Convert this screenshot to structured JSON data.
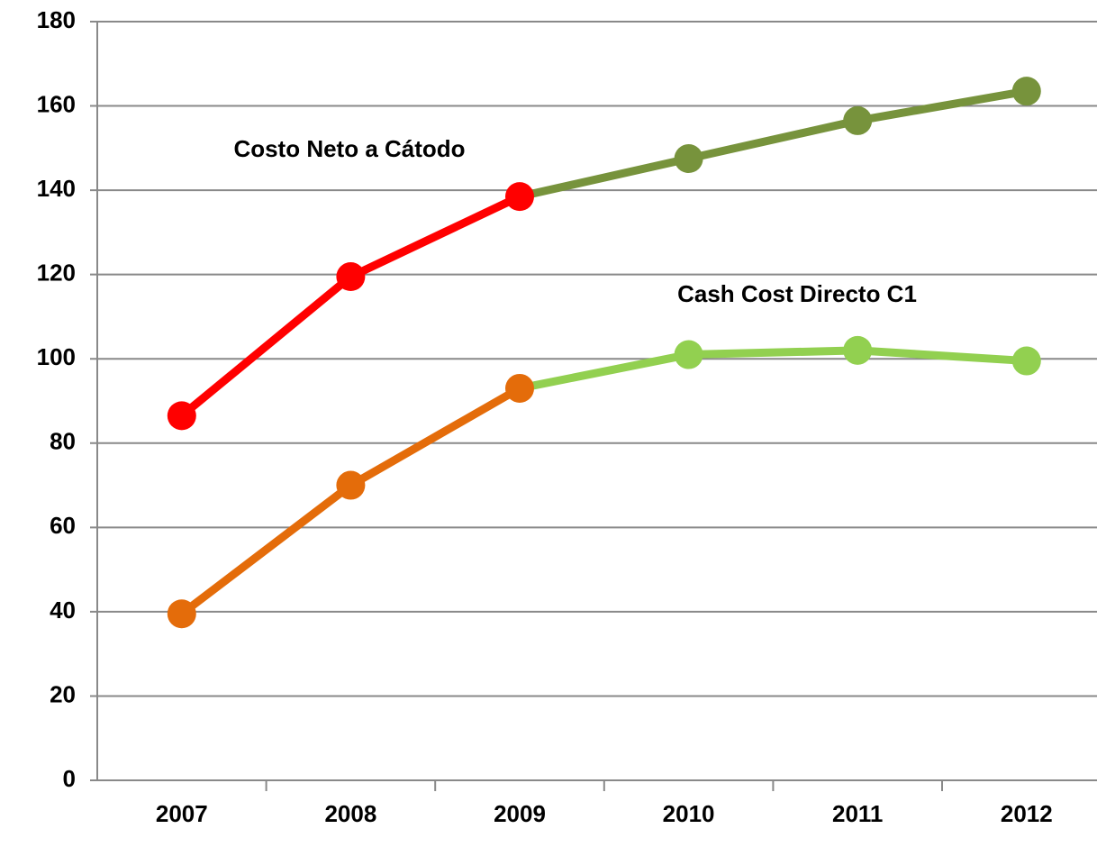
{
  "chart_data": {
    "type": "line",
    "annotations": [
      "Costo Neto a Cátodo",
      "Cash Cost Directo C1"
    ],
    "categories": [
      "2007",
      "2008",
      "2009",
      "2010",
      "2011",
      "2012"
    ],
    "series": [
      {
        "name": "Costo Neto a Cátodo",
        "color": [
          "#ff0000",
          "#ff0000",
          "#ff0000",
          "#77933c",
          "#77933c",
          "#77933c"
        ],
        "values": [
          86.5,
          119.5,
          138.5,
          147.5,
          156.5,
          163.5
        ]
      },
      {
        "name": "Cash Cost Directo C1",
        "color": [
          "#e46c0a",
          "#e46c0a",
          "#e46c0a",
          "#92d050",
          "#92d050",
          "#92d050"
        ],
        "values": [
          39.5,
          70,
          93,
          101,
          102,
          99.5
        ]
      }
    ],
    "ylim": [
      0,
      180
    ],
    "yticks": [
      0,
      20,
      40,
      60,
      80,
      100,
      120,
      140,
      160,
      180
    ],
    "grid": true
  }
}
